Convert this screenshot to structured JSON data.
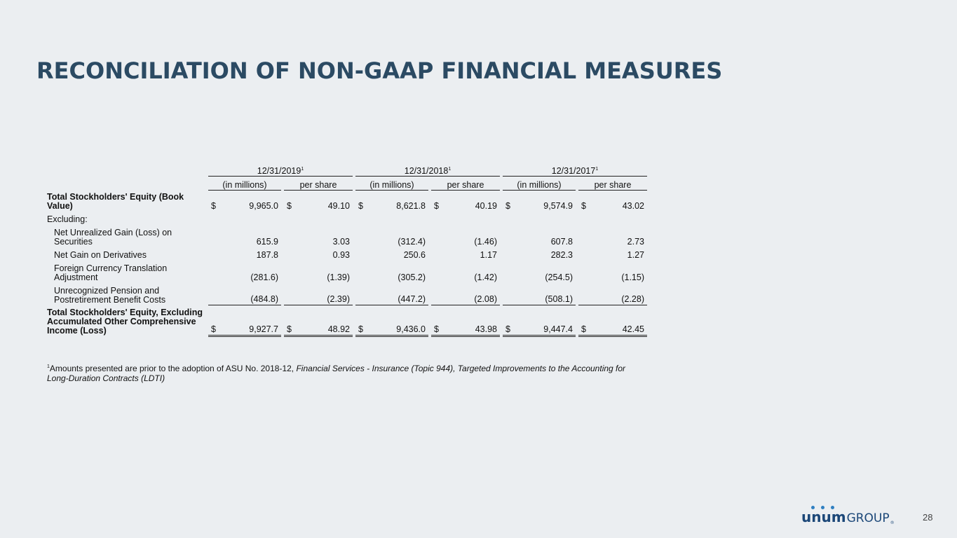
{
  "title": "RECONCILIATION OF NON-GAAP FINANCIAL MEASURES",
  "periods": [
    {
      "label": "12/31/2019",
      "sup": "1"
    },
    {
      "label": "12/31/2018",
      "sup": "1"
    },
    {
      "label": "12/31/2017",
      "sup": "1"
    }
  ],
  "subheaders": {
    "millions": "(in millions)",
    "per_share": "per share"
  },
  "rows": [
    {
      "label": "Total Stockholders' Equity (Book Value)",
      "bold": true,
      "currency": true,
      "values": [
        "9,965.0",
        "49.10",
        "8,621.8",
        "40.19",
        "9,574.9",
        "43.02"
      ]
    },
    {
      "label": "Excluding:"
    },
    {
      "label": "Net Unrealized Gain (Loss) on Securities",
      "indent": true,
      "values": [
        "615.9",
        "3.03",
        "(312.4)",
        "(1.46)",
        "607.8",
        "2.73"
      ]
    },
    {
      "label": "Net Gain on Derivatives",
      "indent": true,
      "values": [
        "187.8",
        "0.93",
        "250.6",
        "1.17",
        "282.3",
        "1.27"
      ]
    },
    {
      "label": "Foreign Currency Translation Adjustment",
      "indent": true,
      "values": [
        "(281.6)",
        "(1.39)",
        "(305.2)",
        "(1.42)",
        "(254.5)",
        "(1.15)"
      ]
    },
    {
      "label": "Unrecognized Pension and Postretirement Benefit Costs",
      "indent": true,
      "values": [
        "(484.8)",
        "(2.39)",
        "(447.2)",
        "(2.08)",
        "(508.1)",
        "(2.28)"
      ]
    },
    {
      "label": "Total Stockholders' Equity, Excluding Accumulated Other Comprehensive Income (Loss)",
      "bold": true,
      "currency": true,
      "values": [
        "9,927.7",
        "48.92",
        "9,436.0",
        "43.98",
        "9,447.4",
        "42.45"
      ]
    }
  ],
  "currency_symbol": "$",
  "footnote": {
    "sup": "1",
    "text": "Amounts presented are prior to the adoption of ASU No. 2018-12, ",
    "italic": "Financial Services - Insurance (Topic 944), Targeted Improvements to the Accounting for Long-Duration Contracts (LDTI)"
  },
  "logo": {
    "unum": "unum",
    "group": "GROUP",
    "reg": "®"
  },
  "page_number": "28"
}
